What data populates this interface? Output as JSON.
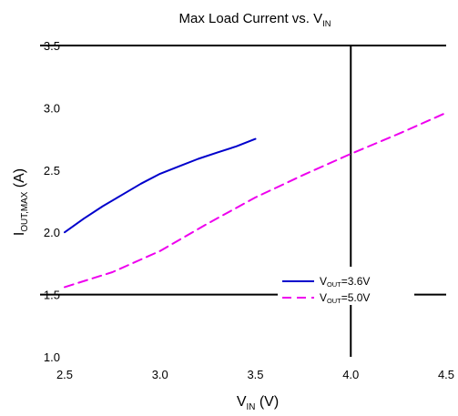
{
  "chart_data": {
    "type": "line",
    "title": {
      "main": "Max Load Current vs. V",
      "sub": "IN"
    },
    "xlabel": {
      "main": "V",
      "sub": "IN",
      "suffix": " (V)"
    },
    "ylabel": {
      "main": "I",
      "sub": "OUT,MAX",
      "suffix": " (A)"
    },
    "xlim": [
      2.5,
      4.5
    ],
    "ylim": [
      1.0,
      3.5
    ],
    "x_ticks": [
      "2.5",
      "3.0",
      "3.5",
      "4.0",
      "4.5"
    ],
    "y_ticks": [
      "1.0",
      "1.5",
      "2.0",
      "2.5",
      "3.0",
      "3.5"
    ],
    "grid": {
      "horizontal": [
        1.5,
        3.5
      ],
      "vertical": [
        4.0
      ]
    },
    "legend_position": "lower-right",
    "series": [
      {
        "name": "3.6V",
        "label": {
          "main": "V",
          "sub": "OUT",
          "suffix": "=3.6V"
        },
        "color": "#0000cc",
        "style": "solid",
        "x": [
          2.5,
          2.6,
          2.7,
          2.8,
          2.9,
          3.0,
          3.1,
          3.2,
          3.3,
          3.4,
          3.5
        ],
        "y": [
          2.0,
          2.11,
          2.21,
          2.3,
          2.39,
          2.47,
          2.53,
          2.59,
          2.64,
          2.69,
          2.75
        ]
      },
      {
        "name": "5.0V",
        "label": {
          "main": "V",
          "sub": "OUT",
          "suffix": "=5.0V"
        },
        "color": "#ee00ee",
        "style": "dashed",
        "x": [
          2.5,
          2.75,
          3.0,
          3.25,
          3.5,
          3.75,
          4.0,
          4.25,
          4.5
        ],
        "y": [
          1.56,
          1.68,
          1.85,
          2.07,
          2.28,
          2.46,
          2.63,
          2.79,
          2.96
        ]
      }
    ]
  }
}
